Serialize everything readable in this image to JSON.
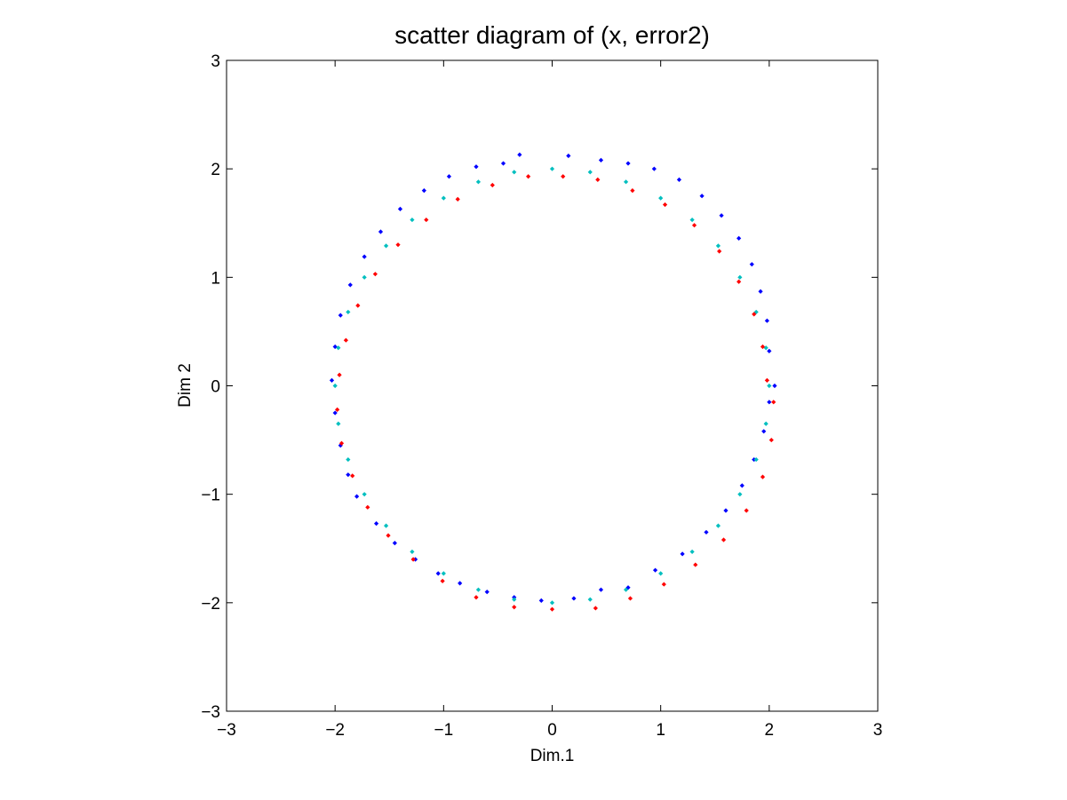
{
  "chart_data": {
    "type": "scatter",
    "title": "scatter diagram of (x, error2)",
    "xlabel": "Dim.1",
    "ylabel": "Dim 2",
    "xlim": [
      -3,
      3
    ],
    "ylim": [
      -3,
      3
    ],
    "xticks": [
      -3,
      -2,
      -1,
      0,
      1,
      2,
      3
    ],
    "yticks": [
      -3,
      -2,
      -1,
      0,
      1,
      2,
      3
    ],
    "xtick_labels": [
      "−3",
      "−2",
      "−1",
      "0",
      "1",
      "2",
      "3"
    ],
    "ytick_labels": [
      "−3",
      "−2",
      "−1",
      "0",
      "1",
      "2",
      "3"
    ],
    "grid": false,
    "legend": "none",
    "series": [
      {
        "color": "#0000ff",
        "marker": "diamond",
        "points": [
          [
            2.05,
            0.0
          ],
          [
            2.0,
            0.32
          ],
          [
            1.98,
            0.6
          ],
          [
            1.92,
            0.87
          ],
          [
            1.84,
            1.12
          ],
          [
            1.72,
            1.36
          ],
          [
            1.56,
            1.57
          ],
          [
            1.38,
            1.75
          ],
          [
            1.17,
            1.9
          ],
          [
            0.94,
            2.0
          ],
          [
            0.7,
            2.05
          ],
          [
            0.45,
            2.08
          ],
          [
            0.15,
            2.12
          ],
          [
            -0.3,
            2.13
          ],
          [
            -0.45,
            2.05
          ],
          [
            -0.7,
            2.02
          ],
          [
            -0.95,
            1.93
          ],
          [
            -1.18,
            1.8
          ],
          [
            -1.4,
            1.63
          ],
          [
            -1.58,
            1.42
          ],
          [
            -1.73,
            1.19
          ],
          [
            -1.86,
            0.93
          ],
          [
            -1.95,
            0.65
          ],
          [
            -2.0,
            0.36
          ],
          [
            -2.03,
            0.05
          ],
          [
            -2.0,
            -0.25
          ],
          [
            -1.95,
            -0.55
          ],
          [
            -1.88,
            -0.82
          ],
          [
            -1.8,
            -1.02
          ],
          [
            -1.62,
            -1.27
          ],
          [
            -1.45,
            -1.45
          ],
          [
            -1.26,
            -1.6
          ],
          [
            -1.05,
            -1.73
          ],
          [
            -0.85,
            -1.82
          ],
          [
            -0.6,
            -1.9
          ],
          [
            -0.35,
            -1.95
          ],
          [
            -0.1,
            -1.98
          ],
          [
            0.2,
            -1.96
          ],
          [
            0.45,
            -1.88
          ],
          [
            0.7,
            -1.86
          ],
          [
            0.95,
            -1.7
          ],
          [
            1.2,
            -1.55
          ],
          [
            1.42,
            -1.35
          ],
          [
            1.6,
            -1.15
          ],
          [
            1.75,
            -0.92
          ],
          [
            1.86,
            -0.68
          ],
          [
            1.95,
            -0.42
          ],
          [
            2.0,
            -0.15
          ]
        ]
      },
      {
        "color": "#00bfbf",
        "marker": "diamond",
        "points": [
          [
            2.0,
            0.0
          ],
          [
            1.97,
            0.35
          ],
          [
            1.88,
            0.68
          ],
          [
            1.73,
            1.0
          ],
          [
            1.53,
            1.29
          ],
          [
            1.29,
            1.53
          ],
          [
            1.0,
            1.73
          ],
          [
            0.68,
            1.88
          ],
          [
            0.35,
            1.97
          ],
          [
            0.0,
            2.0
          ],
          [
            -0.35,
            1.97
          ],
          [
            -0.68,
            1.88
          ],
          [
            -1.0,
            1.73
          ],
          [
            -1.29,
            1.53
          ],
          [
            -1.53,
            1.29
          ],
          [
            -1.73,
            1.0
          ],
          [
            -1.88,
            0.68
          ],
          [
            -1.97,
            0.35
          ],
          [
            -2.0,
            0.0
          ],
          [
            -1.97,
            -0.35
          ],
          [
            -1.88,
            -0.68
          ],
          [
            -1.73,
            -1.0
          ],
          [
            -1.53,
            -1.29
          ],
          [
            -1.29,
            -1.53
          ],
          [
            -1.0,
            -1.73
          ],
          [
            -0.68,
            -1.88
          ],
          [
            -0.35,
            -1.97
          ],
          [
            0.0,
            -2.0
          ],
          [
            0.35,
            -1.97
          ],
          [
            0.68,
            -1.88
          ],
          [
            1.0,
            -1.73
          ],
          [
            1.29,
            -1.53
          ],
          [
            1.53,
            -1.29
          ],
          [
            1.73,
            -1.0
          ],
          [
            1.88,
            -0.68
          ],
          [
            1.97,
            -0.35
          ]
        ]
      },
      {
        "color": "#ff0000",
        "marker": "diamond",
        "points": [
          [
            1.98,
            0.05
          ],
          [
            1.94,
            0.36
          ],
          [
            1.86,
            0.66
          ],
          [
            1.72,
            0.96
          ],
          [
            1.54,
            1.24
          ],
          [
            1.31,
            1.48
          ],
          [
            1.04,
            1.67
          ],
          [
            0.74,
            1.8
          ],
          [
            0.42,
            1.9
          ],
          [
            0.1,
            1.93
          ],
          [
            -0.22,
            1.93
          ],
          [
            -0.55,
            1.85
          ],
          [
            -0.87,
            1.72
          ],
          [
            -1.16,
            1.53
          ],
          [
            -1.42,
            1.3
          ],
          [
            -1.63,
            1.03
          ],
          [
            -1.79,
            0.74
          ],
          [
            -1.9,
            0.42
          ],
          [
            -1.96,
            0.1
          ],
          [
            -1.98,
            -0.22
          ],
          [
            -1.94,
            -0.53
          ],
          [
            -1.84,
            -0.83
          ],
          [
            -1.7,
            -1.12
          ],
          [
            -1.51,
            -1.38
          ],
          [
            -1.28,
            -1.6
          ],
          [
            -1.01,
            -1.8
          ],
          [
            -0.7,
            -1.95
          ],
          [
            -0.35,
            -2.04
          ],
          [
            0.0,
            -2.06
          ],
          [
            0.4,
            -2.05
          ],
          [
            0.72,
            -1.96
          ],
          [
            1.03,
            -1.83
          ],
          [
            1.32,
            -1.65
          ],
          [
            1.58,
            -1.42
          ],
          [
            1.79,
            -1.15
          ],
          [
            1.94,
            -0.84
          ],
          [
            2.02,
            -0.5
          ],
          [
            2.04,
            -0.15
          ]
        ]
      }
    ]
  }
}
